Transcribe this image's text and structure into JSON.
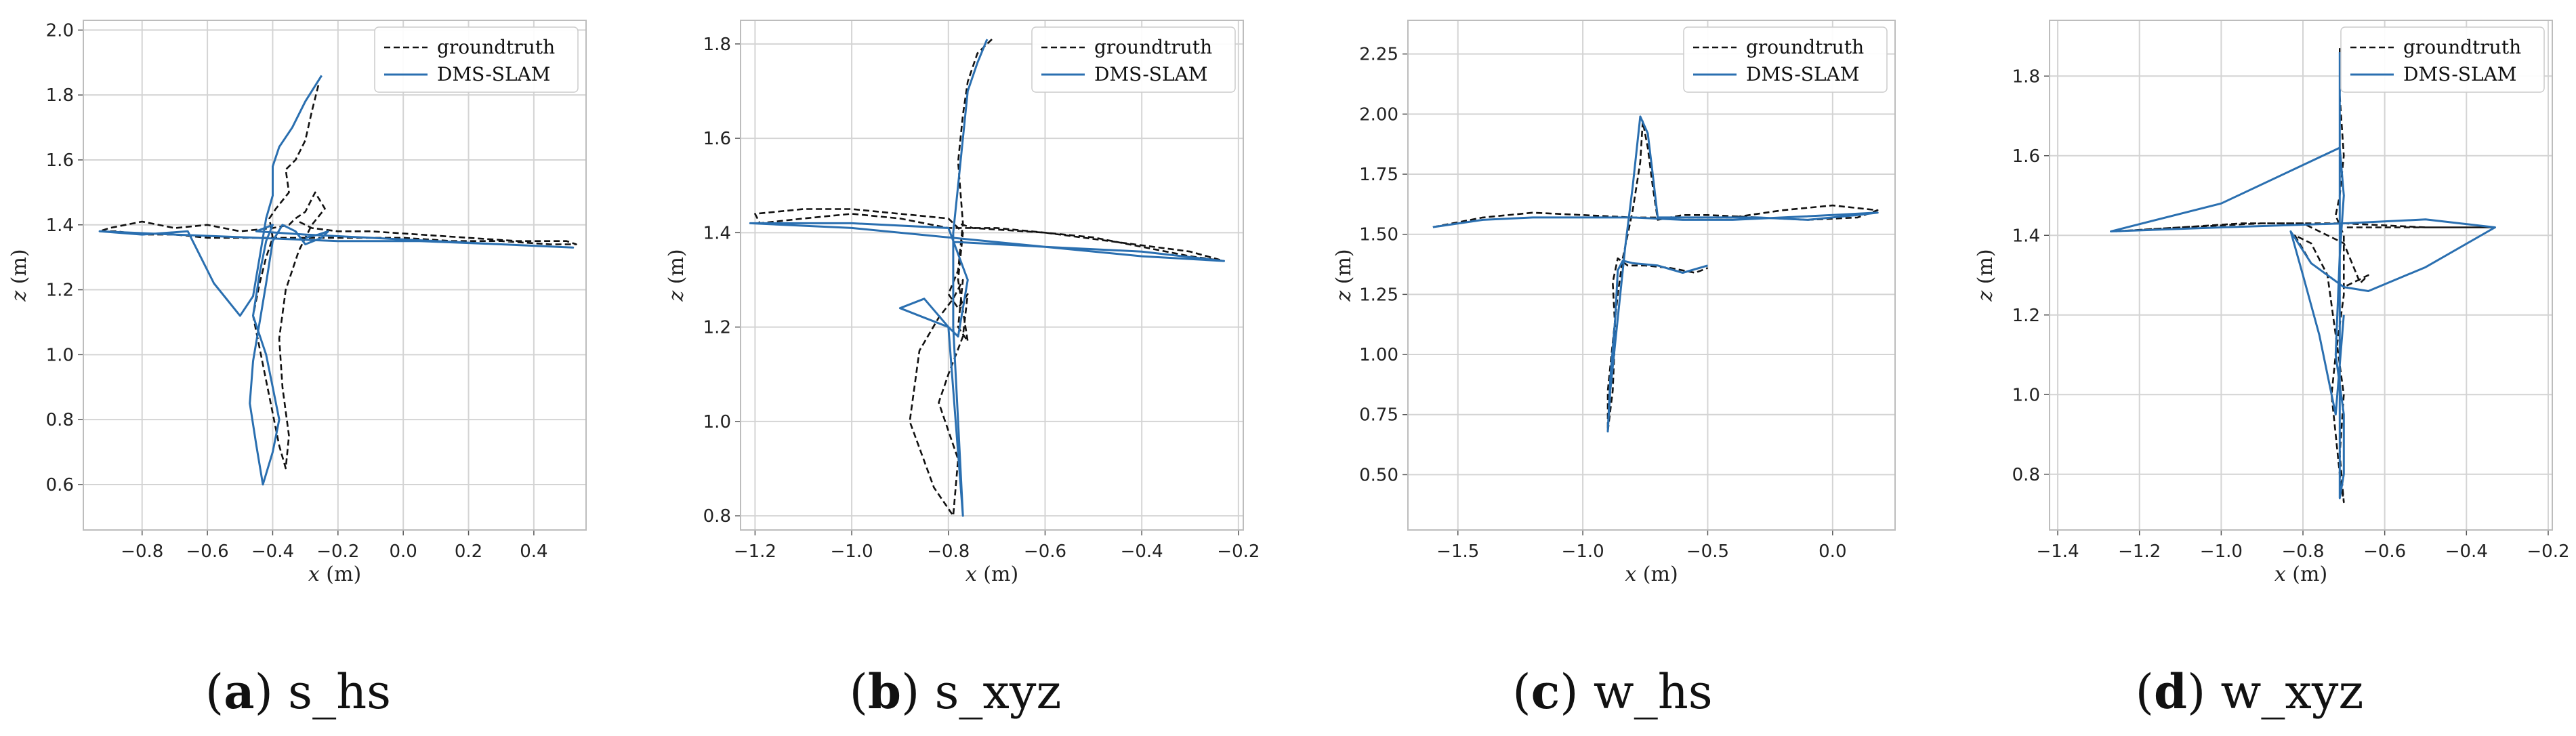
{
  "chart_data": [
    {
      "type": "line",
      "caption": {
        "letter": "a",
        "name": "s_hs"
      },
      "xlabel_var": "x",
      "xlabel_unit": " (m)",
      "ylabel_var": "z",
      "ylabel_unit": " (m)",
      "xlim": [
        -0.98,
        0.56
      ],
      "ylim": [
        0.46,
        2.03
      ],
      "xticks": [
        -0.8,
        -0.6,
        -0.4,
        -0.2,
        0.0,
        0.2,
        0.4
      ],
      "xtick_labels": [
        "−0.8",
        "−0.6",
        "−0.4",
        "−0.2",
        "0.0",
        "0.2",
        "0.4"
      ],
      "yticks": [
        0.6,
        0.8,
        1.0,
        1.2,
        1.4,
        1.6,
        1.8,
        2.0
      ],
      "ytick_labels": [
        "0.6",
        "0.8",
        "1.0",
        "1.2",
        "1.4",
        "1.6",
        "1.8",
        "2.0"
      ],
      "legend": [
        "groundtruth",
        "DMS-SLAM"
      ],
      "series": [
        {
          "name": "groundtruth",
          "style": "dashed",
          "color": "#111111",
          "x": [
            -0.26,
            -0.28,
            -0.3,
            -0.33,
            -0.36,
            -0.35,
            -0.39,
            -0.41,
            -0.4,
            -0.42,
            -0.44,
            -0.46,
            -0.44,
            -0.42,
            -0.4,
            -0.38,
            -0.36,
            -0.35,
            -0.37,
            -0.38,
            -0.36,
            -0.32,
            -0.28,
            -0.24,
            -0.27,
            -0.3,
            -0.33,
            -0.35,
            -0.4,
            -0.5,
            -0.6,
            -0.7,
            -0.8,
            -0.9,
            -0.93,
            -0.88,
            -0.8,
            -0.7,
            -0.6,
            -0.45,
            -0.3,
            -0.15,
            0.0,
            0.15,
            0.3,
            0.45,
            0.53,
            0.5,
            0.35,
            0.2,
            0.05,
            -0.1,
            -0.2,
            -0.28,
            -0.32
          ],
          "y": [
            1.83,
            1.75,
            1.66,
            1.6,
            1.57,
            1.5,
            1.45,
            1.42,
            1.36,
            1.3,
            1.22,
            1.12,
            1.02,
            0.92,
            0.82,
            0.72,
            0.65,
            0.75,
            0.9,
            1.05,
            1.2,
            1.32,
            1.4,
            1.45,
            1.5,
            1.44,
            1.42,
            1.4,
            1.39,
            1.38,
            1.4,
            1.39,
            1.41,
            1.39,
            1.38,
            1.38,
            1.37,
            1.37,
            1.36,
            1.36,
            1.36,
            1.36,
            1.36,
            1.35,
            1.35,
            1.34,
            1.34,
            1.35,
            1.35,
            1.36,
            1.37,
            1.38,
            1.38,
            1.39,
            1.41
          ]
        },
        {
          "name": "DMS-SLAM",
          "style": "solid",
          "color": "#2a6fb0",
          "x": [
            -0.25,
            -0.3,
            -0.34,
            -0.38,
            -0.4,
            -0.4,
            -0.42,
            -0.44,
            -0.46,
            -0.5,
            -0.58,
            -0.66,
            -0.8,
            -0.93,
            -0.7,
            -0.45,
            -0.2,
            0.05,
            0.3,
            0.52,
            0.3,
            0.1,
            -0.1,
            -0.3,
            -0.45,
            -0.4,
            -0.42,
            -0.44,
            -0.46,
            -0.42,
            -0.4,
            -0.38,
            -0.4,
            -0.43,
            -0.45,
            -0.47,
            -0.46,
            -0.44,
            -0.42,
            -0.4,
            -0.37,
            -0.33,
            -0.3,
            -0.25,
            -0.23,
            -0.26,
            -0.3
          ],
          "y": [
            1.86,
            1.78,
            1.7,
            1.64,
            1.58,
            1.49,
            1.42,
            1.3,
            1.18,
            1.12,
            1.22,
            1.38,
            1.37,
            1.38,
            1.37,
            1.36,
            1.35,
            1.35,
            1.34,
            1.33,
            1.34,
            1.35,
            1.36,
            1.37,
            1.38,
            1.4,
            1.35,
            1.25,
            1.12,
            1.0,
            0.9,
            0.8,
            0.7,
            0.6,
            0.72,
            0.85,
            0.98,
            1.1,
            1.22,
            1.35,
            1.4,
            1.38,
            1.34,
            1.36,
            1.38,
            1.37,
            1.36
          ]
        }
      ]
    },
    {
      "type": "line",
      "caption": {
        "letter": "b",
        "name": "s_xyz"
      },
      "xlabel_var": "x",
      "xlabel_unit": " (m)",
      "ylabel_var": "z",
      "ylabel_unit": " (m)",
      "xlim": [
        -1.23,
        -0.19
      ],
      "ylim": [
        0.77,
        1.85
      ],
      "xticks": [
        -1.2,
        -1.0,
        -0.8,
        -0.6,
        -0.4,
        -0.2
      ],
      "xtick_labels": [
        "−1.2",
        "−1.0",
        "−0.8",
        "−0.6",
        "−0.4",
        "−0.2"
      ],
      "yticks": [
        0.8,
        1.0,
        1.2,
        1.4,
        1.6,
        1.8
      ],
      "ytick_labels": [
        "0.8",
        "1.0",
        "1.2",
        "1.4",
        "1.6",
        "1.8"
      ],
      "legend": [
        "groundtruth",
        "DMS-SLAM"
      ],
      "series": [
        {
          "name": "groundtruth",
          "style": "dashed",
          "color": "#111111",
          "x": [
            -0.71,
            -0.74,
            -0.76,
            -0.77,
            -0.78,
            -0.77,
            -0.78,
            -0.8,
            -0.78,
            -0.76,
            -0.77,
            -0.8,
            -0.82,
            -0.8,
            -0.78,
            -0.79,
            -0.83,
            -0.88,
            -0.86,
            -0.82,
            -0.79,
            -0.77,
            -0.78,
            -0.76,
            -0.78,
            -0.77,
            -0.8,
            -0.9,
            -1.0,
            -1.1,
            -1.2,
            -1.19,
            -1.1,
            -1.0,
            -0.9,
            -0.8,
            -0.7,
            -0.6,
            -0.5,
            -0.4,
            -0.3,
            -0.23,
            -0.3,
            -0.45,
            -0.6,
            -0.75,
            -0.78
          ],
          "y": [
            1.81,
            1.78,
            1.72,
            1.65,
            1.55,
            1.42,
            1.32,
            1.27,
            1.24,
            1.27,
            1.18,
            1.1,
            1.04,
            0.98,
            0.92,
            0.8,
            0.86,
            1.0,
            1.15,
            1.22,
            1.26,
            1.3,
            1.2,
            1.17,
            1.3,
            1.4,
            1.43,
            1.44,
            1.45,
            1.45,
            1.44,
            1.42,
            1.43,
            1.44,
            1.43,
            1.41,
            1.41,
            1.4,
            1.39,
            1.37,
            1.35,
            1.34,
            1.36,
            1.38,
            1.4,
            1.41,
            1.42
          ]
        },
        {
          "name": "DMS-SLAM",
          "style": "solid",
          "color": "#2a6fb0",
          "x": [
            -0.72,
            -0.74,
            -0.76,
            -0.77,
            -0.78,
            -0.79,
            -0.79,
            -0.78,
            -0.77,
            -0.8,
            -0.85,
            -0.9,
            -0.85,
            -0.8,
            -0.78,
            -0.76,
            -0.8,
            -1.0,
            -1.21,
            -1.0,
            -0.8,
            -0.6,
            -0.4,
            -0.23,
            -0.4,
            -0.6,
            -0.78,
            -0.79
          ],
          "y": [
            1.81,
            1.76,
            1.7,
            1.6,
            1.5,
            1.4,
            1.2,
            1.0,
            0.8,
            1.2,
            1.26,
            1.24,
            1.22,
            1.2,
            1.18,
            1.3,
            1.41,
            1.42,
            1.42,
            1.41,
            1.39,
            1.37,
            1.35,
            1.34,
            1.36,
            1.37,
            1.38,
            1.38
          ]
        }
      ]
    },
    {
      "type": "line",
      "caption": {
        "letter": "c",
        "name": "w_hs"
      },
      "xlabel_var": "x",
      "xlabel_unit": " (m)",
      "ylabel_var": "z",
      "ylabel_unit": " (m)",
      "xlim": [
        -1.7,
        0.25
      ],
      "ylim": [
        0.27,
        2.39
      ],
      "xticks": [
        -1.5,
        -1.0,
        -0.5,
        0.0
      ],
      "xtick_labels": [
        "−1.5",
        "−1.0",
        "−0.5",
        "0.0"
      ],
      "yticks": [
        0.5,
        0.75,
        1.0,
        1.25,
        1.5,
        1.75,
        2.0,
        2.25
      ],
      "ytick_labels": [
        "0.50",
        "0.75",
        "1.00",
        "1.25",
        "1.50",
        "1.75",
        "2.00",
        "2.25"
      ],
      "legend": [
        "groundtruth",
        "DMS-SLAM"
      ],
      "series": [
        {
          "name": "groundtruth",
          "style": "dashed",
          "color": "#111111",
          "x": [
            -1.6,
            -1.4,
            -1.2,
            -1.0,
            -0.8,
            -0.6,
            -0.4,
            -0.2,
            0.0,
            0.18,
            0.1,
            -0.1,
            -0.3,
            -0.5,
            -0.6,
            -0.7,
            -0.72,
            -0.74,
            -0.76,
            -0.77,
            -0.8,
            -0.84,
            -0.86,
            -0.88,
            -0.9,
            -0.9,
            -0.88,
            -0.87,
            -0.88,
            -0.86,
            -0.82,
            -0.75,
            -0.65,
            -0.55,
            -0.5
          ],
          "y": [
            1.53,
            1.57,
            1.59,
            1.58,
            1.57,
            1.57,
            1.57,
            1.6,
            1.62,
            1.6,
            1.57,
            1.56,
            1.57,
            1.58,
            1.58,
            1.56,
            1.7,
            1.86,
            1.97,
            1.8,
            1.6,
            1.4,
            1.25,
            1.05,
            0.85,
            0.68,
            0.85,
            1.1,
            1.3,
            1.4,
            1.37,
            1.37,
            1.36,
            1.34,
            1.36
          ]
        },
        {
          "name": "DMS-SLAM",
          "style": "solid",
          "color": "#2a6fb0",
          "x": [
            -1.6,
            -1.4,
            -1.2,
            -1.0,
            -0.8,
            -0.6,
            -0.4,
            -0.2,
            0.0,
            0.18,
            0.1,
            -0.1,
            -0.3,
            -0.5,
            -0.7,
            -0.72,
            -0.74,
            -0.77,
            -0.8,
            -0.83,
            -0.85,
            -0.87,
            -0.89,
            -0.9,
            -0.89,
            -0.87,
            -0.86,
            -0.84,
            -0.8,
            -0.7,
            -0.6,
            -0.5
          ],
          "y": [
            1.53,
            1.56,
            1.57,
            1.57,
            1.57,
            1.56,
            1.56,
            1.57,
            1.58,
            1.59,
            1.58,
            1.56,
            1.57,
            1.57,
            1.57,
            1.75,
            1.92,
            1.99,
            1.7,
            1.45,
            1.25,
            1.05,
            0.85,
            0.68,
            0.9,
            1.15,
            1.35,
            1.39,
            1.38,
            1.37,
            1.34,
            1.37
          ]
        }
      ]
    },
    {
      "type": "line",
      "caption": {
        "letter": "d",
        "name": "w_xyz"
      },
      "xlabel_var": "x",
      "xlabel_unit": " (m)",
      "ylabel_var": "z",
      "ylabel_unit": " (m)",
      "xlim": [
        -1.42,
        -0.19
      ],
      "ylim": [
        0.66,
        1.94
      ],
      "xticks": [
        -1.4,
        -1.2,
        -1.0,
        -0.8,
        -0.6,
        -0.4,
        -0.2
      ],
      "xtick_labels": [
        "−1.4",
        "−1.2",
        "−1.0",
        "−0.8",
        "−0.6",
        "−0.4",
        "−0.2"
      ],
      "yticks": [
        0.8,
        1.0,
        1.2,
        1.4,
        1.6,
        1.8
      ],
      "ytick_labels": [
        "0.8",
        "1.0",
        "1.2",
        "1.4",
        "1.6",
        "1.8"
      ],
      "legend": [
        "groundtruth",
        "DMS-SLAM"
      ],
      "series": [
        {
          "name": "groundtruth",
          "style": "dashed",
          "color": "#111111",
          "x": [
            -0.71,
            -0.71,
            -0.7,
            -0.71,
            -0.72,
            -0.7,
            -0.7,
            -0.72,
            -0.73,
            -0.72,
            -0.71,
            -0.7,
            -0.71,
            -0.7,
            -0.72,
            -0.74,
            -0.78,
            -0.82,
            -0.78,
            -0.7,
            -0.64,
            -0.66,
            -0.7,
            -0.8,
            -0.95,
            -1.1,
            -1.26,
            -1.1,
            -0.9,
            -0.7,
            -0.5,
            -0.33,
            -0.5,
            -0.7
          ],
          "y": [
            1.87,
            1.75,
            1.6,
            1.5,
            1.45,
            1.4,
            1.25,
            1.1,
            1.0,
            0.9,
            0.8,
            0.73,
            0.85,
            1.0,
            1.15,
            1.3,
            1.38,
            1.4,
            1.33,
            1.27,
            1.3,
            1.28,
            1.38,
            1.43,
            1.43,
            1.42,
            1.41,
            1.42,
            1.43,
            1.43,
            1.42,
            1.42,
            1.42,
            1.42
          ]
        },
        {
          "name": "DMS-SLAM",
          "style": "solid",
          "color": "#2a6fb0",
          "x": [
            -0.71,
            -0.71,
            -0.71,
            -0.7,
            -0.71,
            -0.72,
            -0.7,
            -0.7,
            -0.71,
            -0.71,
            -1.0,
            -1.27,
            -1.0,
            -0.7,
            -0.5,
            -0.33,
            -0.5,
            -0.64,
            -0.7,
            -0.78,
            -0.83,
            -0.8,
            -0.76,
            -0.72,
            -0.7
          ],
          "y": [
            1.86,
            1.75,
            1.62,
            1.5,
            1.35,
            1.1,
            0.95,
            0.8,
            0.74,
            1.62,
            1.48,
            1.41,
            1.42,
            1.43,
            1.44,
            1.42,
            1.32,
            1.26,
            1.27,
            1.33,
            1.41,
            1.3,
            1.15,
            0.95,
            1.2
          ]
        }
      ]
    }
  ]
}
